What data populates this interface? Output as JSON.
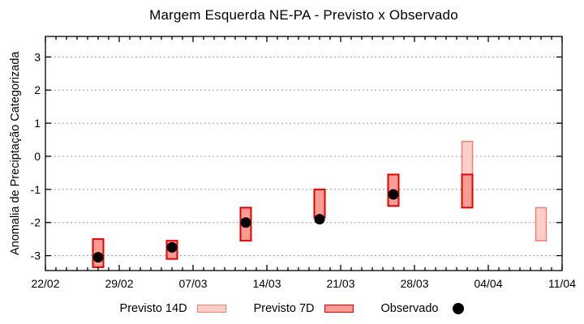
{
  "chart_data": {
    "type": "bar",
    "subtype": "forecast-range-boxes-with-observed-points",
    "title": "Margem Esquerda NE-PA - Previsto x Observado",
    "ylabel": "Anomalia de Preciptação Categorizada",
    "xlabel": "",
    "x_tick_labels": [
      "22/02",
      "29/02",
      "07/03",
      "14/03",
      "21/03",
      "28/03",
      "04/04",
      "11/04"
    ],
    "x_range_days": [
      0,
      49
    ],
    "x_minor_tick_every_days": 1,
    "x_major_tick_every_days": 7,
    "y_ticks": [
      3,
      2,
      1,
      0,
      -1,
      -2,
      -3
    ],
    "ylim": [
      -3.45,
      3.62
    ],
    "grid": "horizontal-dashed",
    "legend_position": "bottom-center",
    "series": {
      "previsto14": {
        "label": "Previsto 14D",
        "fill": "#fbcfc8",
        "border": "#ef8275"
      },
      "previsto7": {
        "label": "Previsto 7D",
        "fill": "#fb9d95",
        "border": "#e60000"
      },
      "observado": {
        "label": "Observado",
        "color": "#000000"
      }
    },
    "points": [
      {
        "date": "27/02",
        "day": 5,
        "previsto14_range": null,
        "previsto7_range": [
          -3.35,
          -2.5
        ],
        "observado": -3.05
      },
      {
        "date": "05/03",
        "day": 12,
        "previsto14_range": null,
        "previsto7_range": [
          -3.1,
          -2.55
        ],
        "observado": -2.75
      },
      {
        "date": "12/03",
        "day": 19,
        "previsto14_range": null,
        "previsto7_range": [
          -2.55,
          -1.55
        ],
        "observado": -2.0
      },
      {
        "date": "19/03",
        "day": 26,
        "previsto14_range": null,
        "previsto7_range": [
          -1.85,
          -1.0
        ],
        "observado": -1.9
      },
      {
        "date": "26/03",
        "day": 33,
        "previsto14_range": null,
        "previsto7_range": [
          -1.5,
          -0.55
        ],
        "observado": -1.15
      },
      {
        "date": "02/04",
        "day": 40,
        "previsto14_range": [
          -0.55,
          0.45
        ],
        "previsto7_range": [
          -1.55,
          -0.55
        ],
        "observado": null
      },
      {
        "date": "09/04",
        "day": 47,
        "previsto14_range": [
          -2.55,
          -1.55
        ],
        "previsto7_range": null,
        "observado": null
      }
    ],
    "colors": {
      "grid": "#999999",
      "axis": "#000000",
      "background": "#ffffff"
    }
  }
}
